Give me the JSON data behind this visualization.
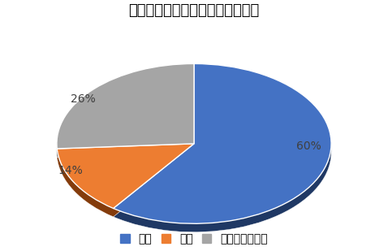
{
  "title": "コペンのインテリアの満足度調査",
  "slices": [
    60,
    14,
    26
  ],
  "labels": [
    "満足",
    "不満",
    "どちらでもない"
  ],
  "colors": [
    "#4472C4",
    "#ED7D31",
    "#A5A5A5"
  ],
  "pct_labels": [
    "60%",
    "14%",
    "26%"
  ],
  "startangle": 90,
  "background_color": "#FFFFFF",
  "title_fontsize": 13,
  "legend_fontsize": 10,
  "depth_color_60": "#1F3864",
  "depth_color_14": "#843C0C",
  "depth_color_26": "#595959"
}
